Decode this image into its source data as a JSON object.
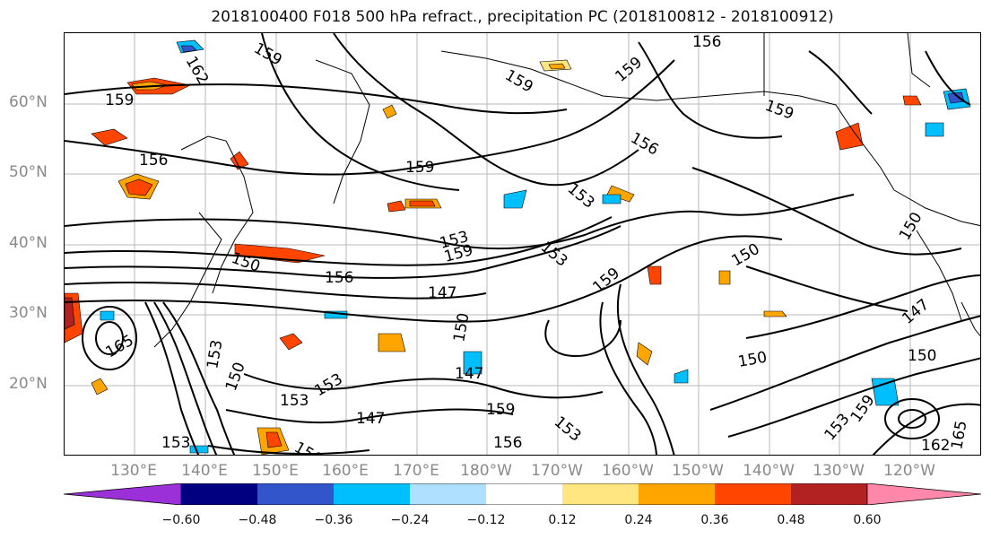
{
  "title": "2018100400 F018 500 hPa refract., precipitation PC (2018100812 - 2018100912)",
  "lat_labels": [
    "60°N",
    "50°N",
    "40°N",
    "30°N",
    "20°N"
  ],
  "lon_labels": [
    "130°E",
    "140°E",
    "150°E",
    "160°E",
    "170°E",
    "180°W",
    "170°W",
    "160°W",
    "150°W",
    "140°W",
    "130°W",
    "120°W"
  ],
  "contour_labels": [
    "156",
    "159",
    "162",
    "159",
    "159",
    "156",
    "159",
    "159",
    "156",
    "159",
    "153",
    "159",
    "153",
    "150",
    "156",
    "147",
    "159",
    "150",
    "150",
    "150",
    "147",
    "150",
    "150",
    "147",
    "153",
    "153",
    "153",
    "165",
    "150",
    "159",
    "153",
    "156",
    "147",
    "159",
    "153",
    "156",
    "153",
    "153",
    "162",
    "165"
  ],
  "colorbar": {
    "ticks": [
      "−0.60",
      "−0.48",
      "−0.36",
      "−0.24",
      "−0.12",
      "0.12",
      "0.24",
      "0.36",
      "0.48",
      "0.60"
    ],
    "colors": [
      "#9b30d9",
      "#000080",
      "#3355cc",
      "#00bfff",
      "#b0e0ff",
      "#ffffff",
      "#ffe680",
      "#ffa500",
      "#ff4500",
      "#b22222",
      "#ff88aa"
    ]
  }
}
